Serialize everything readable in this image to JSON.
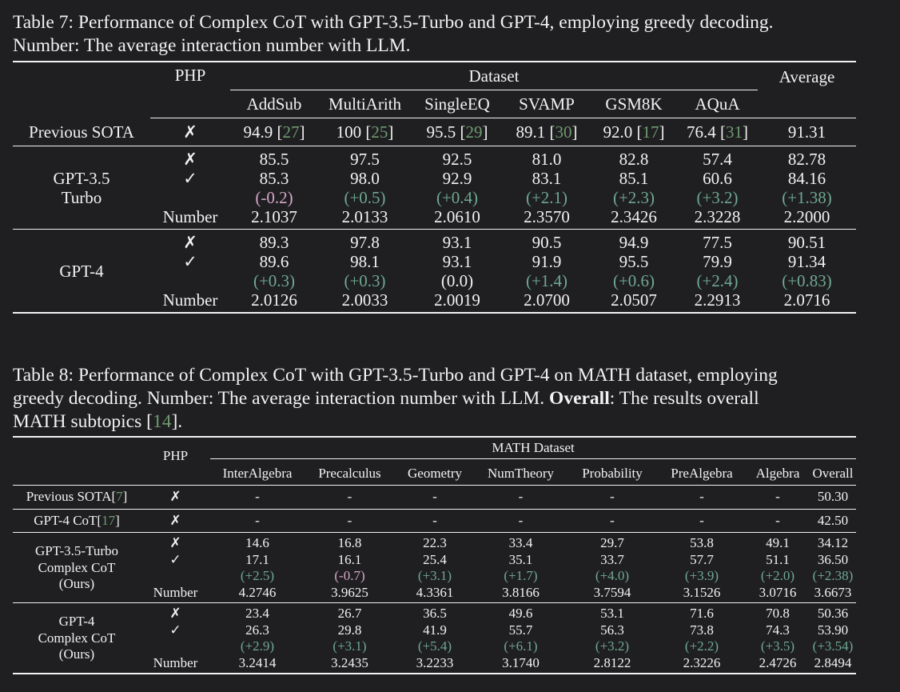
{
  "table7": {
    "caption_line1": "Table 7: Performance of Complex CoT with GPT-3.5-Turbo and GPT-4, employing greedy decoding.",
    "caption_line2": "Number: The average interaction number with LLM.",
    "php_header": "PHP",
    "dataset_header": "Dataset",
    "average_header": "Average",
    "columns": [
      "AddSub",
      "MultiArith",
      "SingleEQ",
      "SVAMP",
      "GSM8K",
      "AQuA"
    ],
    "previous_sota": {
      "label": "Previous SOTA",
      "php": "✗",
      "values": [
        "94.9",
        "100",
        "95.5",
        "89.1",
        "92.0",
        "76.4"
      ],
      "refs": [
        "27",
        "25",
        "29",
        "30",
        "17",
        "31"
      ],
      "average": "91.31"
    },
    "groups": [
      {
        "label_line1": "GPT-3.5",
        "label_line2": "Turbo",
        "php": [
          "✗",
          "✓",
          "",
          "Number"
        ],
        "rows": [
          [
            "85.5",
            "97.5",
            "92.5",
            "81.0",
            "82.8",
            "57.4",
            "82.78"
          ],
          [
            "85.3",
            "98.0",
            "92.9",
            "83.1",
            "85.1",
            "60.6",
            "84.16"
          ],
          [
            "(-0.2)",
            "(+0.5)",
            "(+0.4)",
            "(+2.1)",
            "(+2.3)",
            "(+3.2)",
            "(+1.38)"
          ],
          [
            "2.1037",
            "2.0133",
            "2.0610",
            "2.3570",
            "2.3426",
            "2.3228",
            "2.2000"
          ]
        ]
      },
      {
        "label_line1": "GPT-4",
        "label_line2": "",
        "php": [
          "✗",
          "✓",
          "",
          "Number"
        ],
        "rows": [
          [
            "89.3",
            "97.8",
            "93.1",
            "90.5",
            "94.9",
            "77.5",
            "90.51"
          ],
          [
            "89.6",
            "98.1",
            "93.1",
            "91.9",
            "95.5",
            "79.9",
            "91.34"
          ],
          [
            "(+0.3)",
            "(+0.3)",
            "(0.0)",
            "(+1.4)",
            "(+0.6)",
            "(+2.4)",
            "(+0.83)"
          ],
          [
            "2.0126",
            "2.0033",
            "2.0019",
            "2.0700",
            "2.0507",
            "2.2913",
            "2.0716"
          ]
        ]
      }
    ]
  },
  "table8": {
    "caption_line1": "Table 8: Performance of Complex CoT with GPT-3.5-Turbo and GPT-4 on MATH dataset, employing",
    "caption_line2a": "greedy decoding. Number: The average interaction number with LLM. ",
    "caption_bold": "Overall",
    "caption_line2b": ": The results overall",
    "caption_line3a": "MATH subtopics [",
    "caption_ref": "14",
    "caption_line3b": "].",
    "php_header": "PHP",
    "dataset_header": "MATH Dataset",
    "columns": [
      "InterAlgebra",
      "Precalculus",
      "Geometry",
      "NumTheory",
      "Probability",
      "PreAlgebra",
      "Algebra",
      "Overall"
    ],
    "single_rows": [
      {
        "label": "Previous SOTA[",
        "ref": "7",
        "label_end": "]",
        "php": "✗",
        "values": [
          "-",
          "-",
          "-",
          "-",
          "-",
          "-",
          "-",
          "50.30"
        ]
      },
      {
        "label": "GPT-4 CoT[",
        "ref": "17",
        "label_end": "]",
        "php": "✗",
        "values": [
          "-",
          "-",
          "-",
          "-",
          "-",
          "-",
          "-",
          "42.50"
        ]
      }
    ],
    "groups": [
      {
        "label_lines": [
          "GPT-3.5-Turbo",
          "Complex CoT",
          "(Ours)"
        ],
        "php": [
          "✗",
          "✓",
          "",
          "Number"
        ],
        "rows": [
          [
            "14.6",
            "16.8",
            "22.3",
            "33.4",
            "29.7",
            "53.8",
            "49.1",
            "34.12"
          ],
          [
            "17.1",
            "16.1",
            "25.4",
            "35.1",
            "33.7",
            "57.7",
            "51.1",
            "36.50"
          ],
          [
            "(+2.5)",
            "(-0.7)",
            "(+3.1)",
            "(+1.7)",
            "(+4.0)",
            "(+3.9)",
            "(+2.0)",
            "(+2.38)"
          ],
          [
            "4.2746",
            "3.9625",
            "4.3361",
            "3.8166",
            "3.7594",
            "3.1526",
            "3.0716",
            "3.6673"
          ]
        ]
      },
      {
        "label_lines": [
          "GPT-4",
          "Complex CoT",
          "(Ours)"
        ],
        "php": [
          "✗",
          "✓",
          "",
          "Number"
        ],
        "rows": [
          [
            "23.4",
            "26.7",
            "36.5",
            "49.6",
            "53.1",
            "71.6",
            "70.8",
            "50.36"
          ],
          [
            "26.3",
            "29.8",
            "41.9",
            "55.7",
            "56.3",
            "73.8",
            "74.3",
            "53.90"
          ],
          [
            "(+2.9)",
            "(+3.1)",
            "(+5.4)",
            "(+6.1)",
            "(+3.2)",
            "(+2.2)",
            "(+3.5)",
            "(+3.54)"
          ],
          [
            "3.2414",
            "3.2435",
            "3.2233",
            "3.1740",
            "2.8122",
            "2.3226",
            "2.4726",
            "2.8494"
          ]
        ]
      }
    ]
  }
}
